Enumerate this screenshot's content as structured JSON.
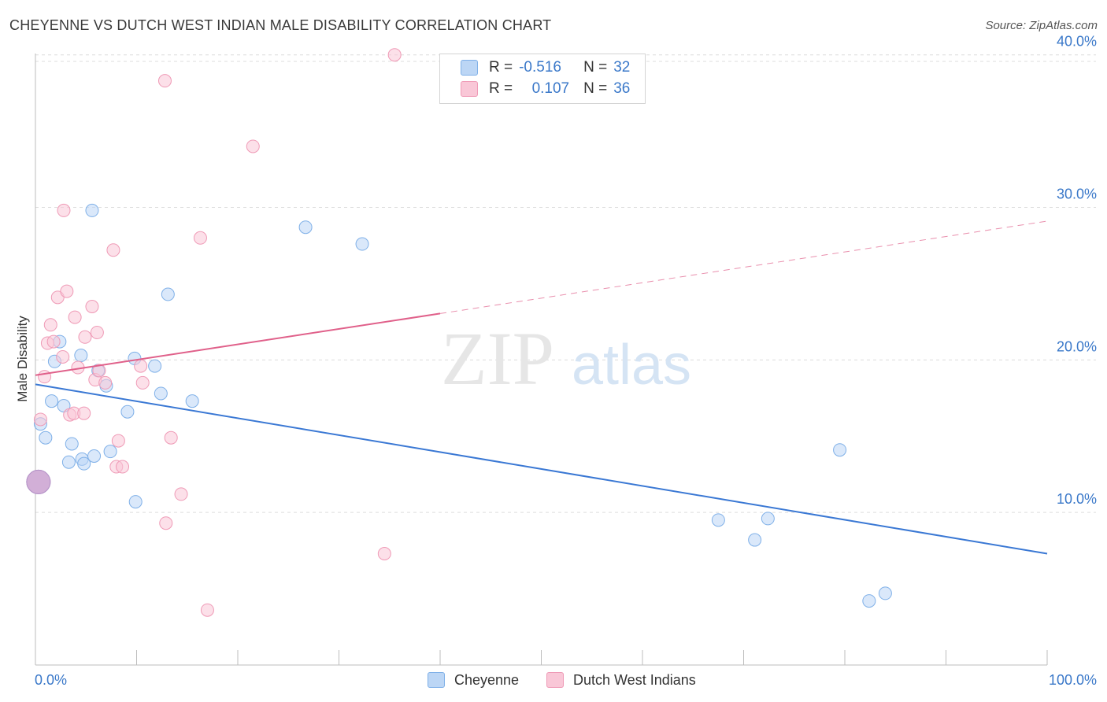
{
  "title": "CHEYENNE VS DUTCH WEST INDIAN MALE DISABILITY CORRELATION CHART",
  "source": "Source: ZipAtlas.com",
  "watermark": {
    "zip": "ZIP",
    "atlas": "atlas"
  },
  "legend": {
    "r_label": "R =",
    "n_label": "N =",
    "rows": [
      {
        "name": "Cheyenne",
        "r": "-0.516",
        "n": "32",
        "color": "#7fb0e8",
        "fill": "#bcd6f5"
      },
      {
        "name": "Dutch West Indians",
        "r": "0.107",
        "n": "36",
        "color": "#ef9ab6",
        "fill": "#f9c7d7"
      }
    ]
  },
  "chart_data": {
    "type": "scatter",
    "title": "CHEYENNE VS DUTCH WEST INDIAN MALE DISABILITY CORRELATION CHART",
    "xlabel": "",
    "ylabel": "Male Disability",
    "xlim": [
      0,
      100
    ],
    "ylim": [
      0,
      40.5
    ],
    "x_tick_labels": [
      "0.0%",
      "100.0%"
    ],
    "y_ticks": [
      10,
      20,
      30,
      40
    ],
    "y_tick_labels": [
      "10.0%",
      "20.0%",
      "30.0%",
      "40.0%"
    ],
    "grid": true,
    "series": [
      {
        "name": "Cheyenne",
        "color": "#3a78d4",
        "fill": "#bcd6f5",
        "stroke": "#7fb0e8",
        "r": -0.516,
        "n": 32,
        "trend": {
          "x0": 0,
          "y0": 18.4,
          "x1": 100,
          "y1": 7.3,
          "solid_until": 100
        },
        "points": [
          [
            0.5,
            15.8
          ],
          [
            1.0,
            14.9
          ],
          [
            1.6,
            17.3
          ],
          [
            1.9,
            19.9
          ],
          [
            2.4,
            21.2
          ],
          [
            2.8,
            17.0
          ],
          [
            3.3,
            13.3
          ],
          [
            3.6,
            14.5
          ],
          [
            4.5,
            20.3
          ],
          [
            4.6,
            13.5
          ],
          [
            4.8,
            13.2
          ],
          [
            5.6,
            29.8
          ],
          [
            5.8,
            13.7
          ],
          [
            6.2,
            19.3
          ],
          [
            7.0,
            18.3
          ],
          [
            7.4,
            14.0
          ],
          [
            9.1,
            16.6
          ],
          [
            9.8,
            20.1
          ],
          [
            9.9,
            10.7
          ],
          [
            11.8,
            19.6
          ],
          [
            12.4,
            17.8
          ],
          [
            13.1,
            24.3
          ],
          [
            15.5,
            17.3
          ],
          [
            26.7,
            28.7
          ],
          [
            32.3,
            27.6
          ],
          [
            79.5,
            14.1
          ],
          [
            67.5,
            9.5
          ],
          [
            71.1,
            8.2
          ],
          [
            72.4,
            9.6
          ],
          [
            82.4,
            4.2
          ],
          [
            84.0,
            4.7
          ],
          [
            0.3,
            12.0
          ]
        ]
      },
      {
        "name": "Dutch West Indians",
        "color": "#e0608a",
        "fill": "#f9c7d7",
        "stroke": "#ef9ab6",
        "r": 0.107,
        "n": 36,
        "trend": {
          "x0": 0,
          "y0": 19.0,
          "x1": 100,
          "y1": 29.1,
          "solid_until": 40
        },
        "points": [
          [
            0.5,
            16.1
          ],
          [
            0.9,
            18.9
          ],
          [
            1.2,
            21.1
          ],
          [
            1.5,
            22.3
          ],
          [
            1.8,
            21.2
          ],
          [
            2.2,
            24.1
          ],
          [
            2.8,
            29.8
          ],
          [
            2.7,
            20.2
          ],
          [
            3.1,
            24.5
          ],
          [
            3.4,
            16.4
          ],
          [
            3.8,
            16.5
          ],
          [
            3.9,
            22.8
          ],
          [
            4.2,
            19.5
          ],
          [
            4.8,
            16.5
          ],
          [
            4.9,
            21.5
          ],
          [
            5.6,
            23.5
          ],
          [
            5.9,
            18.7
          ],
          [
            6.1,
            21.8
          ],
          [
            6.3,
            19.3
          ],
          [
            6.9,
            18.5
          ],
          [
            7.7,
            27.2
          ],
          [
            8.0,
            13.0
          ],
          [
            8.2,
            14.7
          ],
          [
            8.6,
            13.0
          ],
          [
            10.4,
            19.6
          ],
          [
            10.6,
            18.5
          ],
          [
            12.8,
            38.3
          ],
          [
            12.9,
            9.3
          ],
          [
            13.4,
            14.9
          ],
          [
            14.4,
            11.2
          ],
          [
            16.3,
            28.0
          ],
          [
            17.0,
            3.6
          ],
          [
            21.5,
            34.0
          ],
          [
            34.5,
            7.3
          ],
          [
            35.5,
            40.0
          ],
          [
            0.3,
            12.0
          ]
        ]
      }
    ]
  }
}
